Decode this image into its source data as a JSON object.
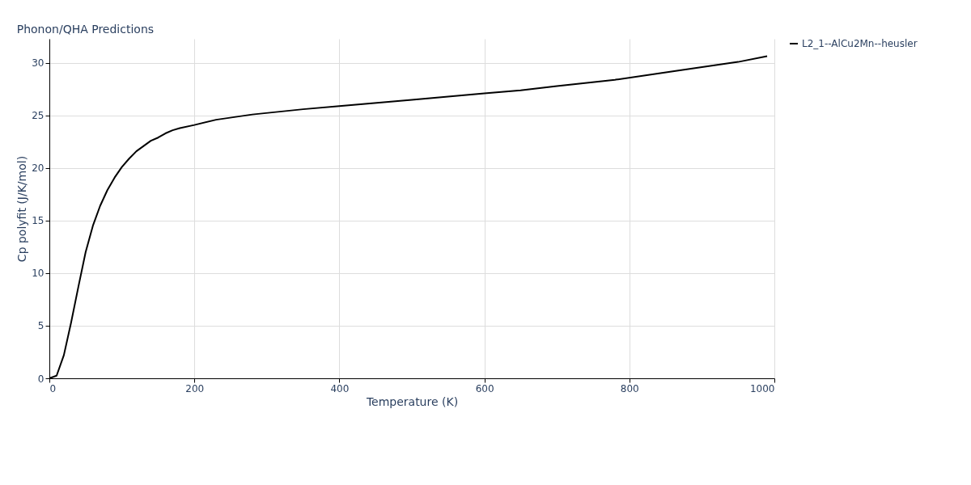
{
  "chart_data": {
    "type": "line",
    "title": "Phonon/QHA Predictions",
    "xlabel": "Temperature (K)",
    "ylabel": "Cp polyfit (J/K/mol)",
    "x": [
      0,
      10,
      20,
      30,
      40,
      50,
      60,
      70,
      80,
      90,
      100,
      110,
      120,
      130,
      140,
      150,
      160,
      170,
      180,
      200,
      230,
      280,
      350,
      400,
      500,
      600,
      650,
      700,
      780,
      860,
      950,
      990
    ],
    "series": [
      {
        "name": "L2_1--AlCu2Mn--heusler",
        "color": "#000000",
        "values": [
          0,
          0.25,
          2.2,
          5.3,
          8.7,
          12,
          14.5,
          16.4,
          17.9,
          19.1,
          20.1,
          20.9,
          21.6,
          22.1,
          22.6,
          22.9,
          23.3,
          23.6,
          23.8,
          24.1,
          24.6,
          25.1,
          25.6,
          25.9,
          26.5,
          27.1,
          27.4,
          27.8,
          28.4,
          29.2,
          30.1,
          30.65
        ]
      }
    ],
    "xlim": [
      0,
      1000
    ],
    "xticks": [
      0,
      200,
      400,
      600,
      800,
      1000
    ],
    "ylim": [
      0,
      32.3
    ],
    "yticks": [
      0,
      5,
      10,
      15,
      20,
      25,
      30
    ],
    "grid": true,
    "legend": "top right",
    "marker": "none",
    "line_style": "solid"
  }
}
